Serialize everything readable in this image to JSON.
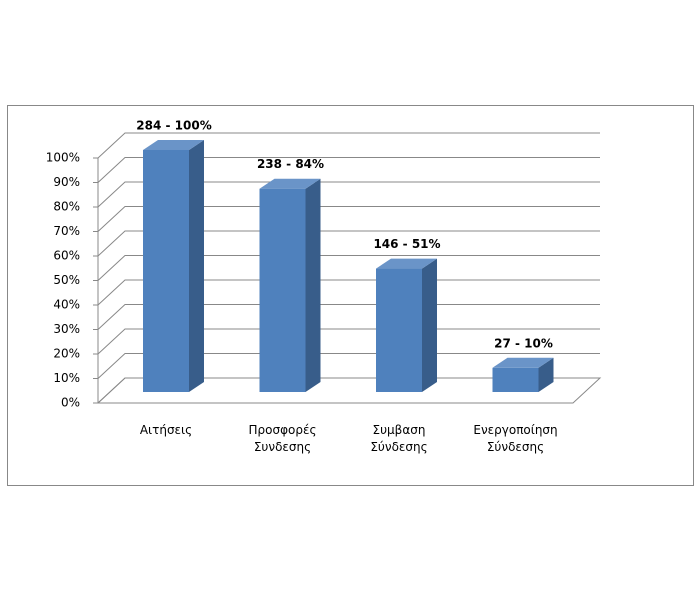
{
  "chart_data": {
    "type": "bar3d",
    "categories": [
      "Αιτήσεις",
      "Προσφορές Συνδεσης",
      "Συμβαση Σύνδεσης",
      "Ενεργοποίηση Σύνδεσης"
    ],
    "values": [
      100,
      84,
      51,
      10
    ],
    "value_labels": [
      "284 - 100%",
      "238 - 84%",
      "146 - 51%",
      "27 - 10%"
    ],
    "color": "#4f81bd",
    "ylim": [
      0,
      100
    ],
    "yticks": [
      {
        "value": 0,
        "label": "0%"
      },
      {
        "value": 10,
        "label": "10%"
      },
      {
        "value": 20,
        "label": "20%"
      },
      {
        "value": 30,
        "label": "30%"
      },
      {
        "value": 40,
        "label": "40%"
      },
      {
        "value": 50,
        "label": "50%"
      },
      {
        "value": 60,
        "label": "60%"
      },
      {
        "value": 70,
        "label": "70%"
      },
      {
        "value": 80,
        "label": "80%"
      },
      {
        "value": 90,
        "label": "90%"
      },
      {
        "value": 100,
        "label": "100%"
      }
    ],
    "grid": true
  }
}
